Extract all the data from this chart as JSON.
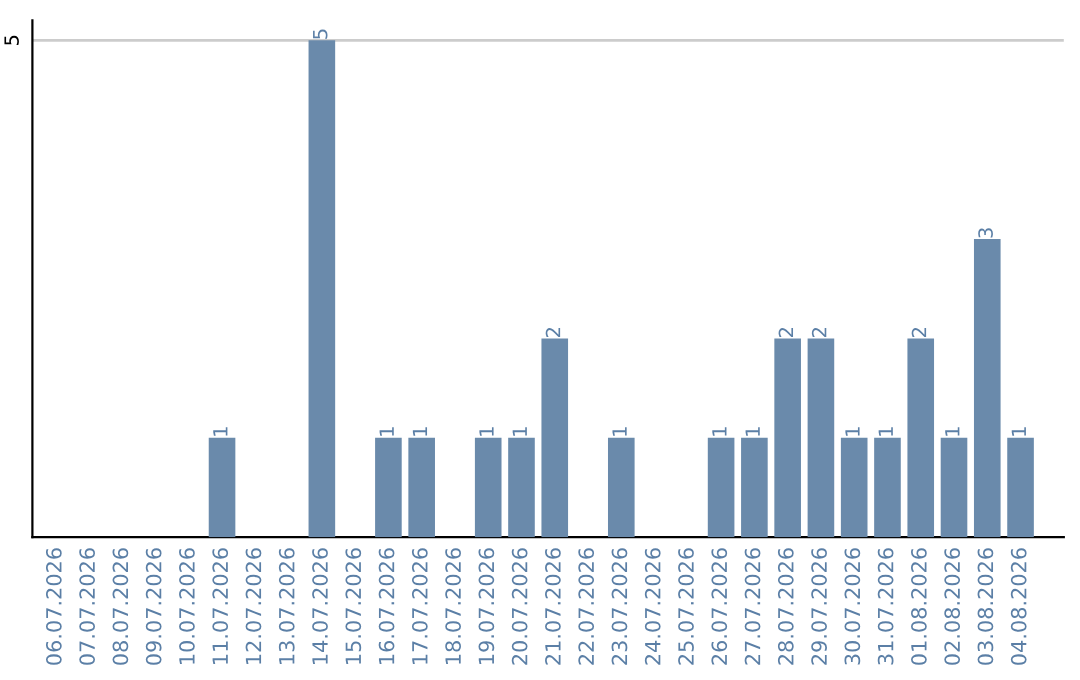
{
  "chart_data": {
    "type": "bar",
    "categories": [
      "06.07.2026",
      "07.07.2026",
      "08.07.2026",
      "09.07.2026",
      "10.07.2026",
      "11.07.2026",
      "12.07.2026",
      "13.07.2026",
      "14.07.2026",
      "15.07.2026",
      "16.07.2026",
      "17.07.2026",
      "18.07.2026",
      "19.07.2026",
      "20.07.2026",
      "21.07.2026",
      "22.07.2026",
      "23.07.2026",
      "24.07.2026",
      "25.07.2026",
      "26.07.2026",
      "27.07.2026",
      "28.07.2026",
      "29.07.2026",
      "30.07.2026",
      "31.07.2026",
      "01.08.2026",
      "02.08.2026",
      "03.08.2026",
      "04.08.2026"
    ],
    "values": [
      0,
      0,
      0,
      0,
      0,
      1,
      0,
      0,
      5,
      0,
      1,
      1,
      0,
      1,
      1,
      2,
      0,
      1,
      0,
      0,
      1,
      1,
      2,
      2,
      1,
      1,
      2,
      1,
      3,
      1
    ],
    "value_labels": [
      null,
      null,
      null,
      null,
      null,
      "1",
      null,
      null,
      "5",
      null,
      "1",
      "1",
      null,
      "1",
      "1",
      "2",
      null,
      "1",
      null,
      null,
      "1",
      "1",
      "2",
      "2",
      "1",
      "1",
      "2",
      "1",
      "3",
      "1"
    ],
    "color": "#6a8aab",
    "ylim": [
      0,
      5.2
    ],
    "yticks": [
      5
    ],
    "grid": "y",
    "legend": false
  }
}
